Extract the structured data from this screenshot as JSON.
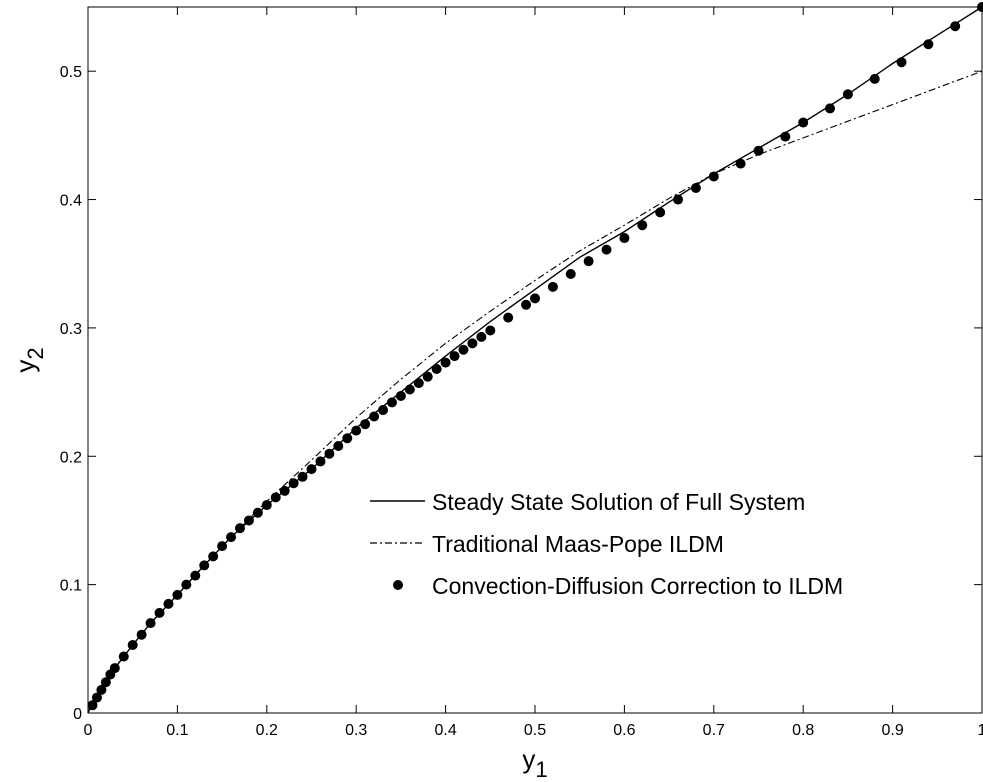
{
  "chart_data": {
    "type": "line",
    "title": "",
    "xlabel": "y",
    "xlabel_sub": "1",
    "ylabel": "y",
    "ylabel_sub": "2",
    "xlim": [
      0,
      1
    ],
    "ylim": [
      0,
      0.55
    ],
    "xticks": [
      0,
      0.1,
      0.2,
      0.3,
      0.4,
      0.5,
      0.6,
      0.7,
      0.8,
      0.9,
      1
    ],
    "xtick_labels": [
      "0",
      "0.1",
      "0.2",
      "0.3",
      "0.4",
      "0.5",
      "0.6",
      "0.7",
      "0.8",
      "0.9",
      "1"
    ],
    "yticks": [
      0,
      0.1,
      0.2,
      0.3,
      0.4,
      0.5
    ],
    "ytick_labels": [
      "0",
      "0.1",
      "0.2",
      "0.3",
      "0.4",
      "0.5"
    ],
    "grid": false,
    "legend_position": "lower-right",
    "series": [
      {
        "name": "Steady State Solution of Full System",
        "style": "solid",
        "x": [
          0,
          0.005,
          0.01,
          0.02,
          0.03,
          0.05,
          0.07,
          0.1,
          0.13,
          0.16,
          0.2,
          0.25,
          0.3,
          0.35,
          0.4,
          0.45,
          0.5,
          0.55,
          0.6,
          0.65,
          0.7,
          0.75,
          0.8,
          0.85,
          0.9,
          0.95,
          1.0
        ],
        "y": [
          0,
          0.008,
          0.014,
          0.025,
          0.035,
          0.053,
          0.07,
          0.092,
          0.115,
          0.137,
          0.162,
          0.19,
          0.222,
          0.25,
          0.278,
          0.305,
          0.33,
          0.355,
          0.375,
          0.398,
          0.42,
          0.44,
          0.46,
          0.482,
          0.506,
          0.528,
          0.55
        ]
      },
      {
        "name": "Traditional Maas-Pope ILDM",
        "style": "dash-dot",
        "x": [
          0,
          0.005,
          0.01,
          0.02,
          0.03,
          0.05,
          0.07,
          0.1,
          0.13,
          0.16,
          0.2,
          0.25,
          0.3,
          0.35,
          0.4,
          0.45,
          0.5,
          0.55,
          0.6,
          0.65,
          0.7,
          0.75,
          0.8,
          0.85,
          0.9,
          0.95,
          1.0
        ],
        "y": [
          0,
          0.008,
          0.014,
          0.025,
          0.035,
          0.053,
          0.07,
          0.092,
          0.115,
          0.137,
          0.165,
          0.197,
          0.23,
          0.26,
          0.288,
          0.313,
          0.337,
          0.36,
          0.38,
          0.401,
          0.42,
          0.435,
          0.448,
          0.461,
          0.474,
          0.487,
          0.5
        ]
      },
      {
        "name": "Convection-Diffusion Correction to ILDM",
        "style": "markers",
        "x": [
          0.005,
          0.01,
          0.015,
          0.02,
          0.025,
          0.03,
          0.04,
          0.05,
          0.06,
          0.07,
          0.08,
          0.09,
          0.1,
          0.11,
          0.12,
          0.13,
          0.14,
          0.15,
          0.16,
          0.17,
          0.18,
          0.19,
          0.2,
          0.21,
          0.22,
          0.23,
          0.24,
          0.25,
          0.26,
          0.27,
          0.28,
          0.29,
          0.3,
          0.31,
          0.32,
          0.33,
          0.34,
          0.35,
          0.36,
          0.37,
          0.38,
          0.39,
          0.4,
          0.41,
          0.42,
          0.43,
          0.44,
          0.45,
          0.47,
          0.49,
          0.5,
          0.52,
          0.54,
          0.56,
          0.58,
          0.6,
          0.62,
          0.64,
          0.66,
          0.68,
          0.7,
          0.73,
          0.75,
          0.78,
          0.8,
          0.83,
          0.85,
          0.88,
          0.91,
          0.94,
          0.97,
          1.0
        ],
        "y": [
          0.006,
          0.012,
          0.018,
          0.024,
          0.03,
          0.035,
          0.044,
          0.053,
          0.061,
          0.07,
          0.078,
          0.085,
          0.092,
          0.1,
          0.107,
          0.115,
          0.122,
          0.13,
          0.137,
          0.144,
          0.15,
          0.156,
          0.162,
          0.168,
          0.173,
          0.179,
          0.184,
          0.19,
          0.196,
          0.202,
          0.208,
          0.214,
          0.22,
          0.225,
          0.231,
          0.236,
          0.242,
          0.247,
          0.252,
          0.257,
          0.262,
          0.268,
          0.273,
          0.278,
          0.283,
          0.288,
          0.293,
          0.298,
          0.308,
          0.318,
          0.323,
          0.332,
          0.342,
          0.352,
          0.361,
          0.37,
          0.38,
          0.39,
          0.4,
          0.409,
          0.418,
          0.428,
          0.438,
          0.449,
          0.46,
          0.471,
          0.482,
          0.494,
          0.507,
          0.521,
          0.535,
          0.55
        ]
      }
    ]
  }
}
